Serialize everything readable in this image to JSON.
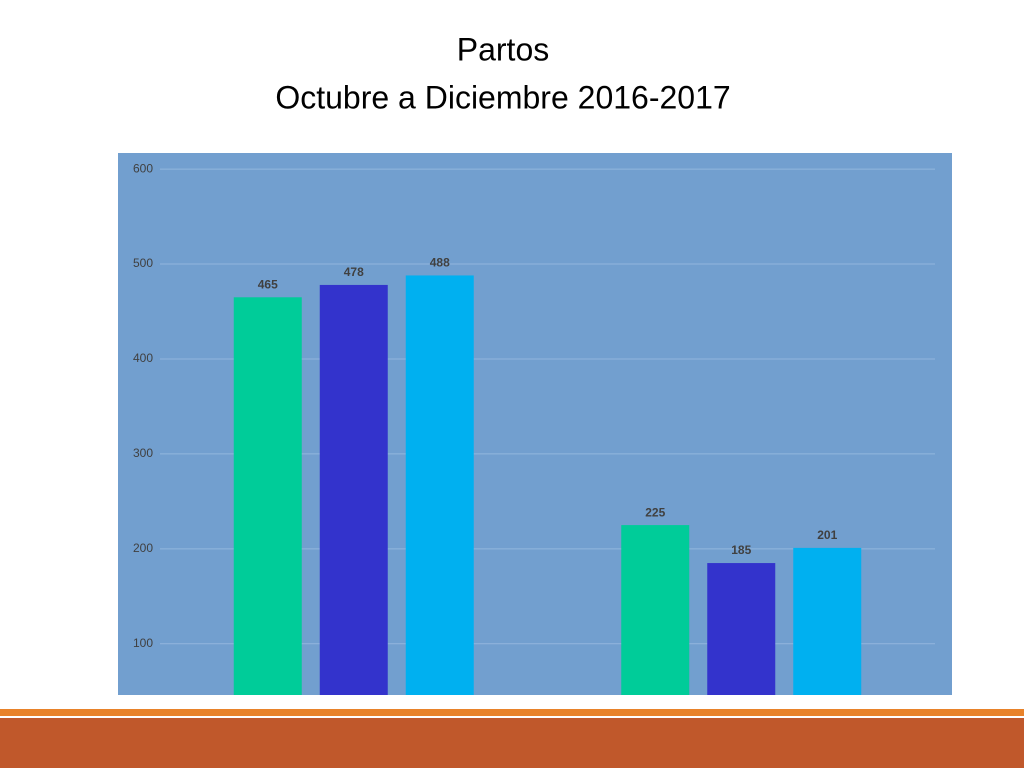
{
  "chart_data": {
    "type": "bar",
    "title": "Partos",
    "subtitle": "Octubre a Diciembre 2016-2017",
    "categories": [
      null,
      null
    ],
    "series": [
      {
        "color": "#00cc99",
        "values": [
          465,
          225
        ]
      },
      {
        "color": "#3333cc",
        "values": [
          478,
          185
        ]
      },
      {
        "color": "#00b0f0",
        "values": [
          488,
          201
        ]
      }
    ],
    "ylim": [
      46,
      617
    ],
    "yticks": [
      100,
      200,
      300,
      400,
      500,
      600
    ],
    "grid": true
  }
}
